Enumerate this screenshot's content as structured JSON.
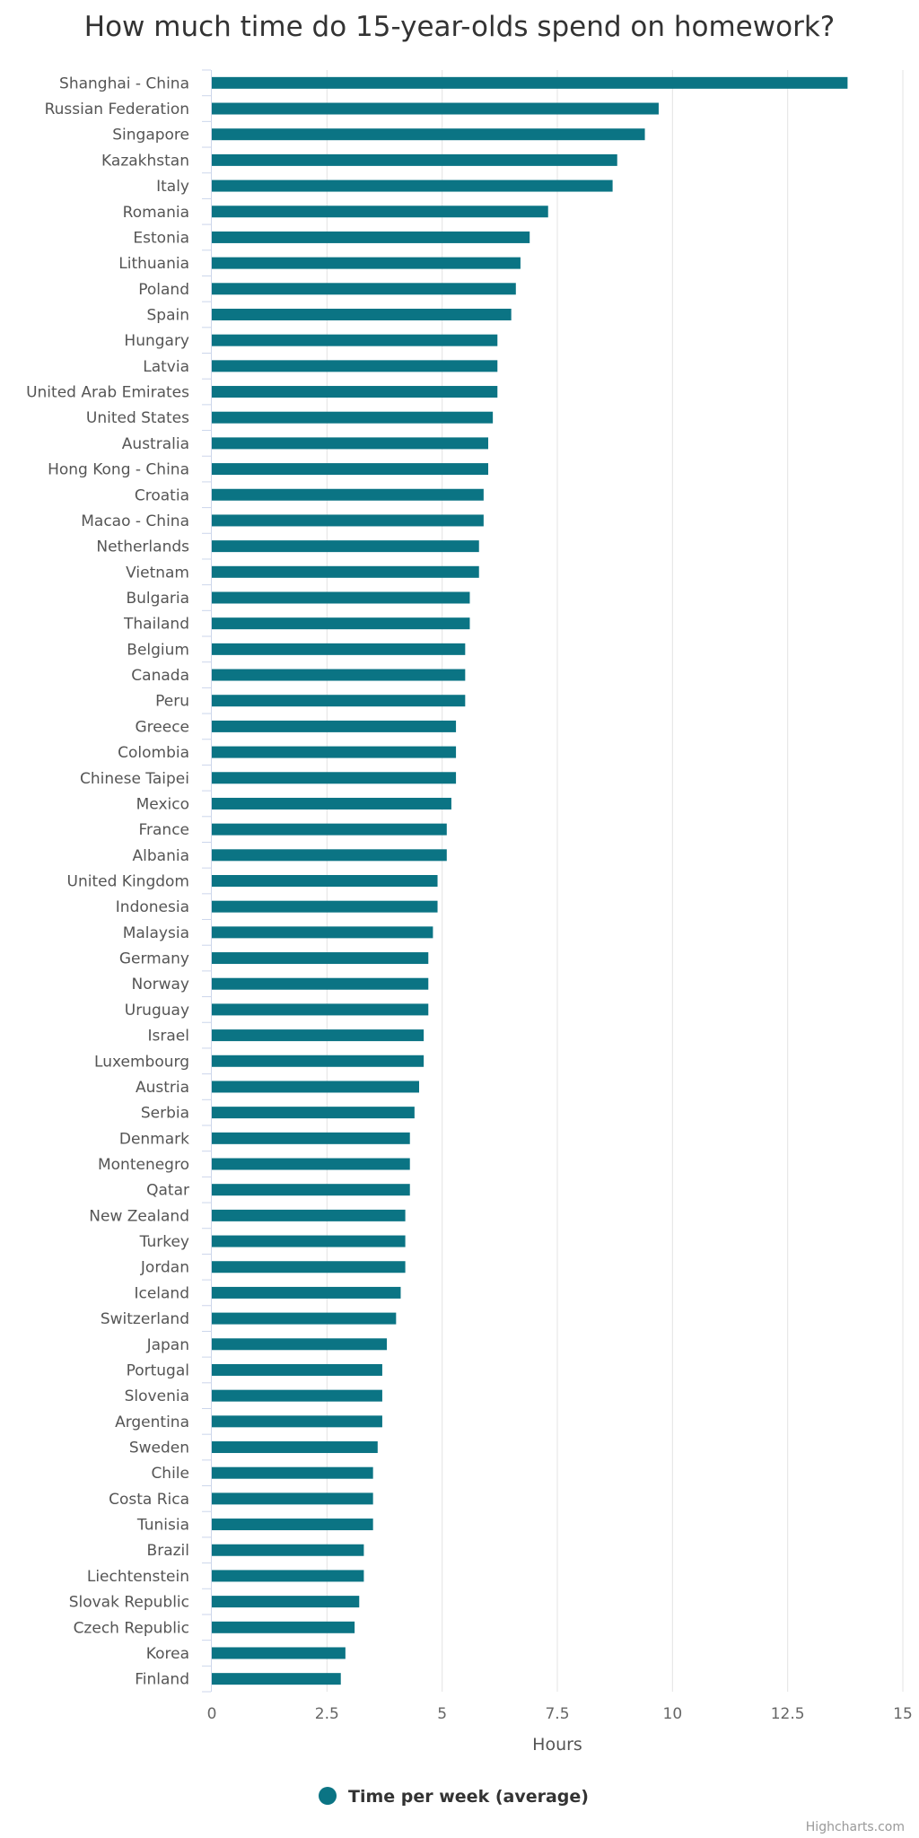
{
  "colors": {
    "bar": "#0b7484",
    "grid": "#e3e3e3",
    "axis_line": "#ccd6eb"
  },
  "credits": "Highcharts.com",
  "chart_data": {
    "type": "bar",
    "orientation": "horizontal",
    "title": "How much time do 15-year-olds spend on homework?",
    "xlabel": "Hours",
    "ylabel": "",
    "xlim": [
      0,
      15
    ],
    "ticks": [
      "0",
      "2.5",
      "5",
      "7.5",
      "10",
      "12.5",
      "15"
    ],
    "grid": true,
    "legend": {
      "position": "bottom-center",
      "label": "Time per week (average)"
    },
    "categories": [
      "Shanghai - China",
      "Russian Federation",
      "Singapore",
      "Kazakhstan",
      "Italy",
      "Romania",
      "Estonia",
      "Lithuania",
      "Poland",
      "Spain",
      "Hungary",
      "Latvia",
      "United Arab Emirates",
      "United States",
      "Australia",
      "Hong Kong - China",
      "Croatia",
      "Macao - China",
      "Netherlands",
      "Vietnam",
      "Bulgaria",
      "Thailand",
      "Belgium",
      "Canada",
      "Peru",
      "Greece",
      "Colombia",
      "Chinese Taipei",
      "Mexico",
      "France",
      "Albania",
      "United Kingdom",
      "Indonesia",
      "Malaysia",
      "Germany",
      "Norway",
      "Uruguay",
      "Israel",
      "Luxembourg",
      "Austria",
      "Serbia",
      "Denmark",
      "Montenegro",
      "Qatar",
      "New Zealand",
      "Turkey",
      "Jordan",
      "Iceland",
      "Switzerland",
      "Japan",
      "Portugal",
      "Slovenia",
      "Argentina",
      "Sweden",
      "Chile",
      "Costa Rica",
      "Tunisia",
      "Brazil",
      "Liechtenstein",
      "Slovak Republic",
      "Czech Republic",
      "Korea",
      "Finland"
    ],
    "series": [
      {
        "name": "Time per week (average)",
        "values": [
          13.8,
          9.7,
          9.4,
          8.8,
          8.7,
          7.3,
          6.9,
          6.7,
          6.6,
          6.5,
          6.2,
          6.2,
          6.2,
          6.1,
          6.0,
          6.0,
          5.9,
          5.9,
          5.8,
          5.8,
          5.6,
          5.6,
          5.5,
          5.5,
          5.5,
          5.3,
          5.3,
          5.3,
          5.2,
          5.1,
          5.1,
          4.9,
          4.9,
          4.8,
          4.7,
          4.7,
          4.7,
          4.6,
          4.6,
          4.5,
          4.4,
          4.3,
          4.3,
          4.3,
          4.2,
          4.2,
          4.2,
          4.1,
          4.0,
          3.8,
          3.7,
          3.7,
          3.7,
          3.6,
          3.5,
          3.5,
          3.5,
          3.3,
          3.3,
          3.2,
          3.1,
          2.9,
          2.8
        ]
      }
    ]
  }
}
